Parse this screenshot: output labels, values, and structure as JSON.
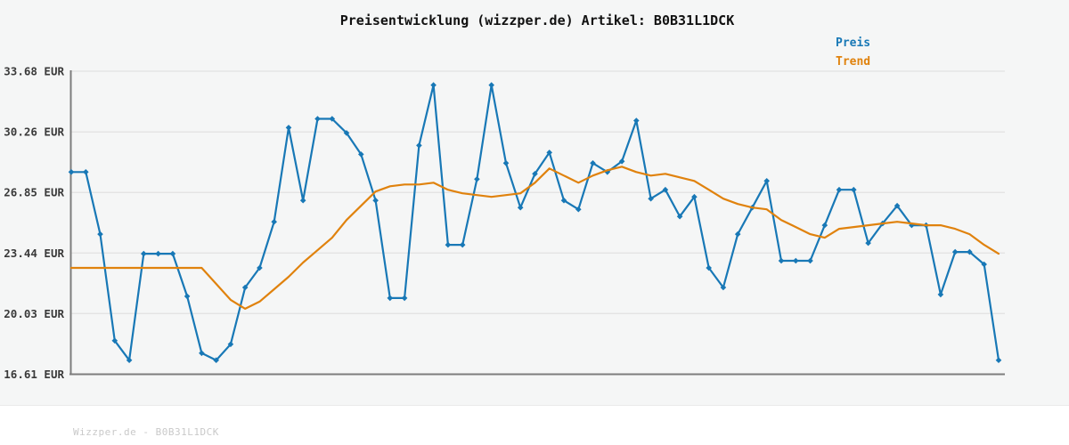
{
  "title": "Preisentwicklung (wizzper.de) Artikel: B0B31L1DCK",
  "footer": "Wizzper.de - B0B31L1DCK",
  "legend": {
    "items": [
      {
        "label": "Preis",
        "color": "#1878b6"
      },
      {
        "label": "Trend",
        "color": "#e0820d"
      }
    ]
  },
  "colors": {
    "background": "#f5f6f6",
    "grid": "#e2e2e2",
    "spine": "#7d7d7d",
    "tick_text": "#3a3a3a",
    "title_text": "#111111",
    "watermark_text": "#c9c9c9",
    "preis_line": "#1878b6",
    "trend_line": "#e0820d"
  },
  "chart_data": {
    "type": "line",
    "title": "Preisentwicklung (wizzper.de) Artikel: B0B31L1DCK",
    "xlabel": "",
    "ylabel": "",
    "x_axis_labels_visible": false,
    "grid": "horizontal",
    "legend_position": "top-right",
    "ylim": [
      16.61,
      33.68
    ],
    "y_ticks": [
      {
        "value": 33.68,
        "label": "33.68 EUR"
      },
      {
        "value": 30.26,
        "label": "30.26 EUR"
      },
      {
        "value": 26.85,
        "label": "26.85 EUR"
      },
      {
        "value": 23.44,
        "label": "23.44 EUR"
      },
      {
        "value": 20.03,
        "label": "20.03 EUR"
      },
      {
        "value": 16.61,
        "label": "16.61 EUR"
      }
    ],
    "series": [
      {
        "name": "Preis",
        "color": "#1878b6",
        "marker": "diamond",
        "values": [
          28.0,
          28.0,
          24.5,
          18.5,
          17.4,
          23.4,
          23.4,
          23.4,
          21.0,
          17.8,
          17.4,
          18.3,
          21.5,
          22.6,
          25.2,
          30.5,
          26.4,
          31.0,
          31.0,
          30.2,
          29.0,
          26.4,
          20.9,
          20.9,
          29.5,
          32.9,
          23.9,
          23.9,
          27.6,
          32.9,
          28.5,
          26.0,
          27.9,
          29.1,
          26.4,
          25.9,
          28.5,
          28.0,
          28.6,
          30.9,
          26.5,
          27.0,
          25.5,
          26.6,
          22.6,
          21.5,
          24.5,
          26.0,
          27.5,
          23.0,
          23.0,
          23.0,
          25.0,
          27.0,
          27.0,
          24.0,
          25.1,
          26.1,
          25.0,
          25.0,
          21.1,
          23.5,
          23.5,
          22.8,
          17.4
        ]
      },
      {
        "name": "Trend",
        "color": "#e0820d",
        "marker": "none",
        "values": [
          22.6,
          22.6,
          22.6,
          22.6,
          22.6,
          22.6,
          22.6,
          22.6,
          22.6,
          22.6,
          21.7,
          20.8,
          20.3,
          20.7,
          21.4,
          22.1,
          22.9,
          23.6,
          24.3,
          25.3,
          26.1,
          26.9,
          27.2,
          27.3,
          27.3,
          27.4,
          27.0,
          26.8,
          26.7,
          26.6,
          26.7,
          26.8,
          27.4,
          28.2,
          27.8,
          27.4,
          27.8,
          28.1,
          28.3,
          28.0,
          27.8,
          27.9,
          27.7,
          27.5,
          27.0,
          26.5,
          26.2,
          26.0,
          25.9,
          25.3,
          24.9,
          24.5,
          24.3,
          24.8,
          24.9,
          25.0,
          25.1,
          25.2,
          25.1,
          25.0,
          25.0,
          24.8,
          24.5,
          23.9,
          23.4
        ]
      }
    ]
  }
}
